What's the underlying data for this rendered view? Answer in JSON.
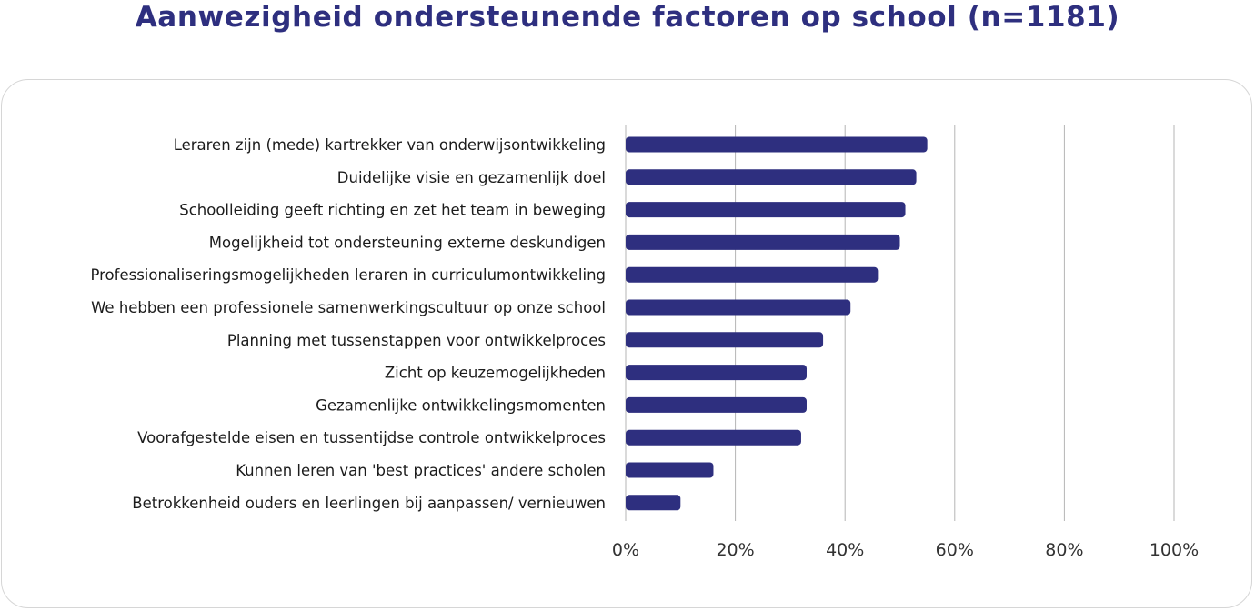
{
  "header": {
    "title": "Aanwezigheid ondersteunende factoren op school (n=1181)"
  },
  "colors": {
    "bar": "#2e2f7f",
    "title": "#2e2f7f",
    "grid": "#b5b5b5",
    "panel_border": "#d6d6d6"
  },
  "chart_data": {
    "type": "bar",
    "orientation": "horizontal",
    "title": "Aanwezigheid ondersteunende factoren op school (n=1181)",
    "xlabel": "",
    "ylabel": "",
    "xlim": [
      0,
      100
    ],
    "grid": true,
    "legend": "none",
    "x_ticks": [
      0,
      20,
      40,
      60,
      80,
      100
    ],
    "x_tick_labels": [
      "0%",
      "20%",
      "40%",
      "60%",
      "80%",
      "100%"
    ],
    "categories": [
      "Leraren zijn (mede) kartrekker van onderwijsontwikkeling",
      "Duidelijke visie en gezamenlijk doel",
      "Schoolleiding geeft richting en zet het team in beweging",
      "Mogelijkheid tot ondersteuning externe deskundigen",
      "Professionaliseringsmogelijkheden leraren in curriculumontwikkeling",
      "We hebben een professionele samenwerkingscultuur op onze school",
      "Planning met tussenstappen voor ontwikkelproces",
      "Zicht op keuzemogelijkheden",
      "Gezamenlijke ontwikkelingsmomenten",
      "Voorafgestelde eisen en tussentijdse controle ontwikkelproces",
      "Kunnen leren van 'best practices' andere scholen",
      "Betrokkenheid ouders en leerlingen bij aanpassen/ vernieuwen"
    ],
    "values": [
      55,
      53,
      51,
      50,
      46,
      41,
      36,
      33,
      33,
      32,
      16,
      10
    ]
  }
}
